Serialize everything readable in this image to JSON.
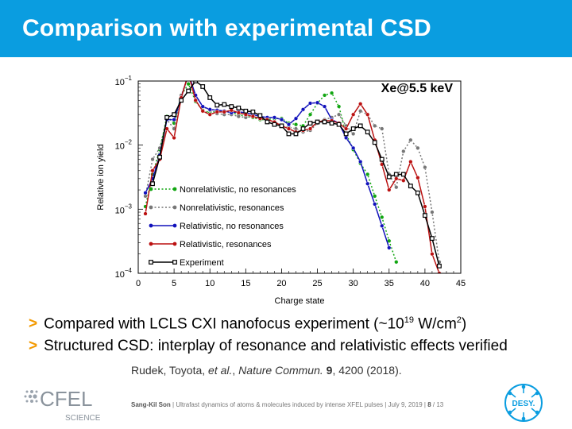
{
  "slide": {
    "title": "Comparison with experimental CSD",
    "bullets": [
      {
        "marker": ">",
        "parts": [
          "Compared with LCLS CXI nanofocus experiment (~10",
          "19",
          " W/cm",
          "2",
          ")"
        ]
      },
      {
        "marker": ">",
        "parts": [
          "Structured CSD: interplay of resonance and relativistic effects verified"
        ]
      }
    ],
    "citation": {
      "authors": "Rudek, Toyota, ",
      "etal": "et al.",
      "sep": ", ",
      "journal": "Nature Commun.",
      "volume": "9",
      "rest": ", 4200 (2018)."
    },
    "footer": {
      "author": "Sang-Kil Son",
      "talk": "Ultrafast dynamics of atoms & molecules induced by intense XFEL pulses",
      "date": "July 9, 2019",
      "page": "8",
      "total": "13"
    },
    "logos": {
      "left_main": "CFEL",
      "left_sub": "SCIENCE",
      "right": "DESY."
    }
  },
  "colors": {
    "title_bar": "#0a9de0",
    "bullet_marker": "#f39a00",
    "green": "#11a611",
    "gray": "#777777",
    "blue": "#1111bb",
    "red": "#bb1111",
    "black": "#000000"
  },
  "chart_data": {
    "type": "line",
    "annotation": "Xe@5.5 keV",
    "xlabel": "Charge state",
    "ylabel": "Relative ion yield",
    "xlim": [
      0,
      45
    ],
    "ylim": [
      0.0001,
      0.1
    ],
    "yscale": "log",
    "xticks": [
      "0",
      "5",
      "10",
      "15",
      "20",
      "25",
      "30",
      "35",
      "40",
      "45"
    ],
    "yticks": [
      {
        "base": "10",
        "exp": "−1"
      },
      {
        "base": "10",
        "exp": "−2"
      },
      {
        "base": "10",
        "exp": "−3"
      },
      {
        "base": "10",
        "exp": "−4"
      }
    ],
    "legend_position": "lower-left",
    "series": [
      {
        "name": "Nonrelativistic, no resonances",
        "color": "#11a611",
        "dash": "dotted",
        "marker": "circle",
        "x": [
          1,
          2,
          3,
          4,
          5,
          6,
          7,
          8,
          9,
          10,
          11,
          12,
          13,
          14,
          15,
          16,
          17,
          18,
          19,
          20,
          21,
          22,
          23,
          24,
          25,
          26,
          27,
          28,
          29,
          30,
          31,
          32,
          33,
          34,
          35,
          36
        ],
        "y": [
          0.0011,
          0.0035,
          0.0085,
          0.028,
          0.022,
          0.06,
          0.09,
          0.048,
          0.035,
          0.032,
          0.034,
          0.034,
          0.032,
          0.03,
          0.028,
          0.027,
          0.025,
          0.025,
          0.026,
          0.026,
          0.022,
          0.021,
          0.02,
          0.03,
          0.045,
          0.06,
          0.065,
          0.04,
          0.015,
          0.0085,
          0.0052,
          0.0035,
          0.0016,
          0.00075,
          0.00032,
          0.00015
        ]
      },
      {
        "name": "Nonrelativistic, resonances",
        "color": "#777777",
        "dash": "dotted",
        "marker": "circle",
        "x": [
          1,
          2,
          3,
          4,
          5,
          6,
          7,
          8,
          9,
          10,
          11,
          12,
          13,
          14,
          15,
          16,
          17,
          18,
          19,
          20,
          21,
          22,
          23,
          24,
          25,
          26,
          27,
          28,
          29,
          30,
          31,
          32,
          33,
          34,
          35,
          36,
          37,
          38,
          39,
          40,
          41,
          42
        ],
        "y": [
          0.0016,
          0.006,
          0.009,
          0.025,
          0.018,
          0.06,
          0.12,
          0.06,
          0.04,
          0.035,
          0.031,
          0.03,
          0.03,
          0.028,
          0.027,
          0.028,
          0.026,
          0.025,
          0.023,
          0.02,
          0.019,
          0.018,
          0.016,
          0.017,
          0.022,
          0.025,
          0.027,
          0.03,
          0.02,
          0.015,
          0.034,
          0.03,
          0.02,
          0.018,
          0.0035,
          0.0022,
          0.008,
          0.012,
          0.009,
          0.0045,
          0.0009,
          0.00015
        ]
      },
      {
        "name": "Relativistic, no resonances",
        "color": "#1111bb",
        "dash": "solid",
        "marker": "circle",
        "x": [
          1,
          2,
          3,
          4,
          5,
          6,
          7,
          8,
          9,
          10,
          11,
          12,
          13,
          14,
          15,
          16,
          17,
          18,
          19,
          20,
          21,
          22,
          23,
          24,
          25,
          26,
          27,
          28,
          29,
          30,
          31,
          32,
          33,
          34,
          35
        ],
        "y": [
          0.0018,
          0.003,
          0.007,
          0.025,
          0.025,
          0.055,
          0.13,
          0.06,
          0.04,
          0.036,
          0.035,
          0.034,
          0.032,
          0.033,
          0.032,
          0.03,
          0.028,
          0.027,
          0.027,
          0.025,
          0.021,
          0.026,
          0.036,
          0.045,
          0.046,
          0.04,
          0.025,
          0.022,
          0.013,
          0.009,
          0.0055,
          0.0025,
          0.0012,
          0.00055,
          0.00025
        ]
      },
      {
        "name": "Relativistic, resonances",
        "color": "#bb1111",
        "dash": "solid",
        "marker": "circle",
        "x": [
          1,
          2,
          3,
          4,
          5,
          6,
          7,
          8,
          9,
          10,
          11,
          12,
          13,
          14,
          15,
          16,
          17,
          18,
          19,
          20,
          21,
          22,
          23,
          24,
          25,
          26,
          27,
          28,
          29,
          30,
          31,
          32,
          33,
          34,
          35,
          36,
          37,
          38,
          39,
          40,
          41,
          42
        ],
        "y": [
          0.00085,
          0.004,
          0.006,
          0.018,
          0.013,
          0.055,
          0.13,
          0.05,
          0.034,
          0.03,
          0.033,
          0.033,
          0.035,
          0.032,
          0.03,
          0.028,
          0.026,
          0.025,
          0.023,
          0.02,
          0.018,
          0.016,
          0.017,
          0.018,
          0.023,
          0.024,
          0.024,
          0.022,
          0.018,
          0.03,
          0.044,
          0.03,
          0.012,
          0.005,
          0.002,
          0.003,
          0.0028,
          0.0055,
          0.0031,
          0.0011,
          0.0002,
          0.0001
        ]
      },
      {
        "name": "Experiment",
        "color": "#000000",
        "dash": "solid",
        "marker": "square",
        "x": [
          2,
          3,
          4,
          5,
          6,
          7,
          8,
          9,
          10,
          11,
          12,
          13,
          14,
          15,
          16,
          17,
          18,
          19,
          20,
          21,
          22,
          23,
          24,
          25,
          26,
          27,
          28,
          29,
          30,
          31,
          32,
          33,
          34,
          35,
          36,
          37,
          38,
          39,
          40,
          41,
          42
        ],
        "y": [
          0.0025,
          0.0065,
          0.027,
          0.03,
          0.05,
          0.07,
          0.1,
          0.082,
          0.055,
          0.042,
          0.043,
          0.04,
          0.038,
          0.034,
          0.033,
          0.029,
          0.023,
          0.021,
          0.02,
          0.015,
          0.015,
          0.018,
          0.022,
          0.023,
          0.023,
          0.022,
          0.021,
          0.015,
          0.018,
          0.02,
          0.016,
          0.011,
          0.006,
          0.0032,
          0.0035,
          0.0035,
          0.0023,
          0.0018,
          0.0008,
          0.00035,
          0.00013
        ]
      }
    ]
  }
}
